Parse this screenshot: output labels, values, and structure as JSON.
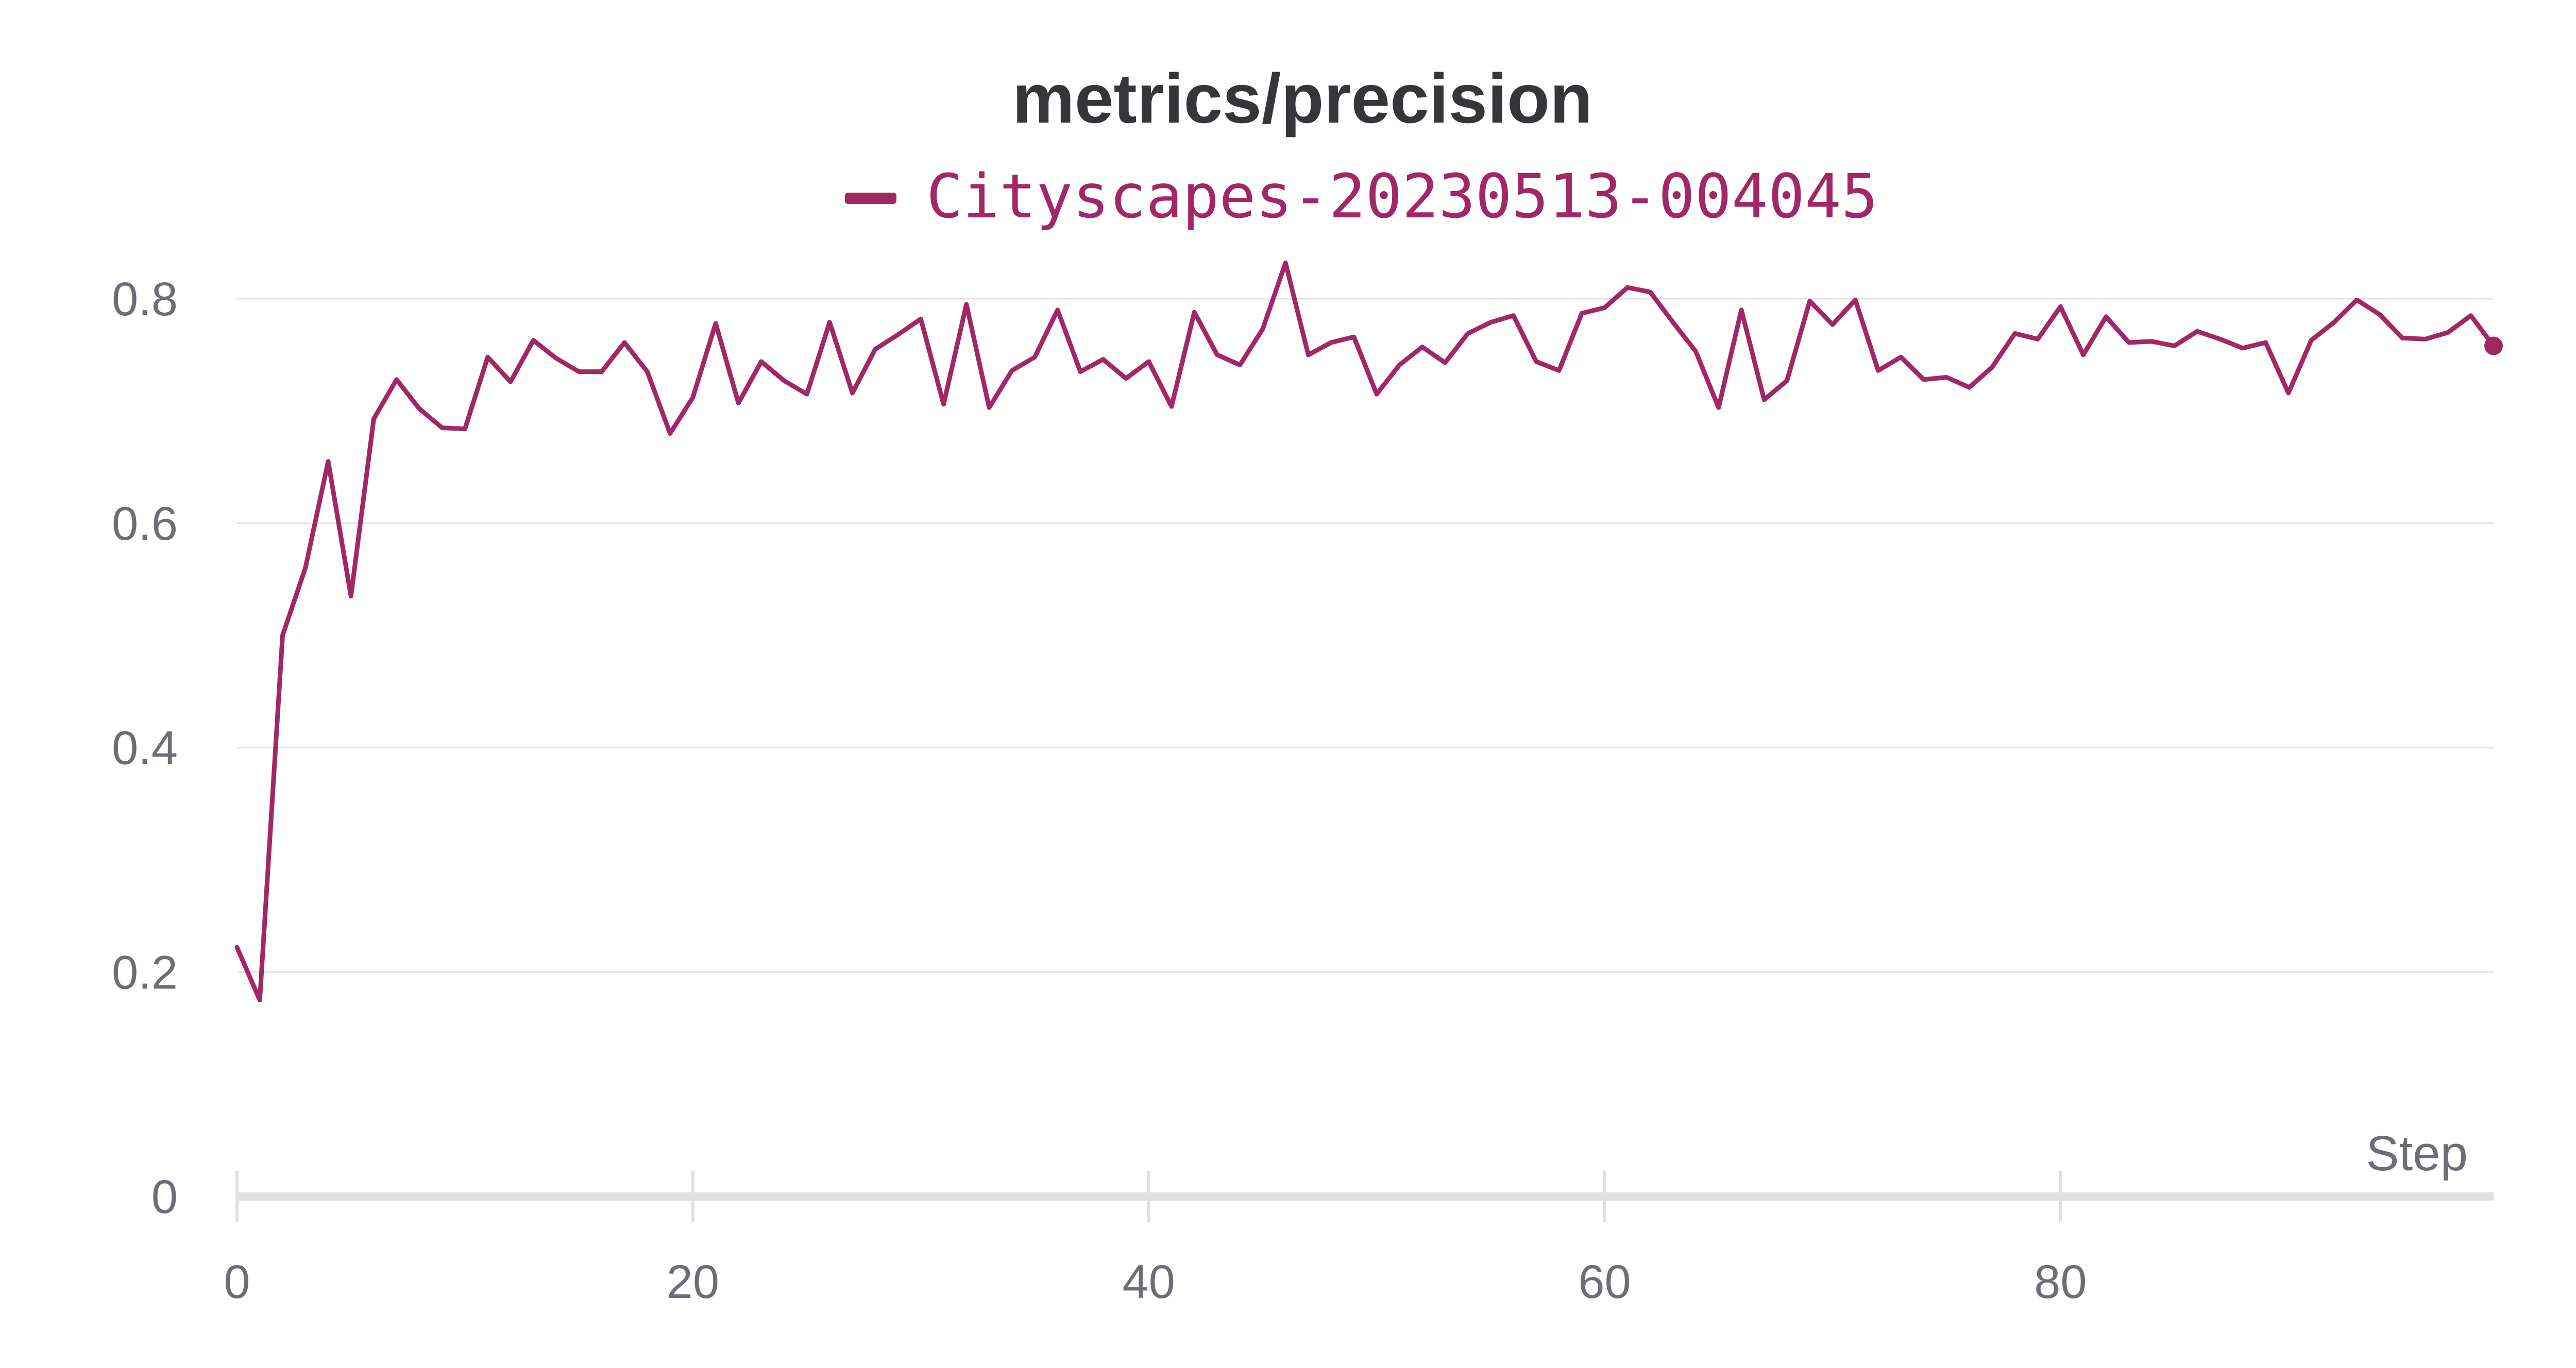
{
  "chart_data": {
    "type": "line",
    "title": "metrics/precision",
    "xlabel": "Step",
    "ylabel": "",
    "xlim": [
      0,
      99
    ],
    "ylim": [
      0,
      0.85
    ],
    "xticks": [
      0,
      20,
      40,
      60,
      80
    ],
    "yticks": [
      0,
      0.2,
      0.4,
      0.6,
      0.8
    ],
    "xtick_labels": [
      "0",
      "20",
      "40",
      "60",
      "80"
    ],
    "ytick_labels": [
      "0",
      "0.2",
      "0.4",
      "0.6",
      "0.8"
    ],
    "grid": true,
    "legend_position": "top-center",
    "series": [
      {
        "name": "Cityscapes-20230513-004045",
        "color": "#a12864",
        "x": [
          0,
          1,
          2,
          3,
          4,
          5,
          6,
          7,
          8,
          9,
          10,
          11,
          12,
          13,
          14,
          15,
          16,
          17,
          18,
          19,
          20,
          21,
          22,
          23,
          24,
          25,
          26,
          27,
          28,
          29,
          30,
          31,
          32,
          33,
          34,
          35,
          36,
          37,
          38,
          39,
          40,
          41,
          42,
          43,
          44,
          45,
          46,
          47,
          48,
          49,
          50,
          51,
          52,
          53,
          54,
          55,
          56,
          57,
          58,
          59,
          60,
          61,
          62,
          63,
          64,
          65,
          66,
          67,
          68,
          69,
          70,
          71,
          72,
          73,
          74,
          75,
          76,
          77,
          78,
          79,
          80,
          81,
          82,
          83,
          84,
          85,
          86,
          87,
          88,
          89,
          90,
          91,
          92,
          93,
          94,
          95,
          96,
          97,
          98,
          99
        ],
        "values": [
          0.222,
          0.175,
          0.5,
          0.56,
          0.655,
          0.535,
          0.693,
          0.728,
          0.702,
          0.685,
          0.684,
          0.748,
          0.726,
          0.763,
          0.747,
          0.735,
          0.735,
          0.761,
          0.735,
          0.68,
          0.712,
          0.778,
          0.707,
          0.744,
          0.727,
          0.715,
          0.779,
          0.716,
          0.755,
          0.768,
          0.782,
          0.706,
          0.795,
          0.703,
          0.736,
          0.748,
          0.79,
          0.735,
          0.746,
          0.729,
          0.744,
          0.704,
          0.788,
          0.75,
          0.741,
          0.773,
          0.832,
          0.75,
          0.761,
          0.766,
          0.715,
          0.741,
          0.757,
          0.743,
          0.769,
          0.779,
          0.785,
          0.744,
          0.736,
          0.787,
          0.792,
          0.81,
          0.806,
          0.779,
          0.753,
          0.703,
          0.79,
          0.71,
          0.727,
          0.798,
          0.777,
          0.799,
          0.736,
          0.748,
          0.728,
          0.73,
          0.721,
          0.739,
          0.769,
          0.764,
          0.793,
          0.75,
          0.784,
          0.761,
          0.762,
          0.758,
          0.771,
          0.764,
          0.756,
          0.761,
          0.716,
          0.763,
          0.779,
          0.799,
          0.786,
          0.765,
          0.764,
          0.77,
          0.785,
          0.758
        ]
      }
    ]
  }
}
